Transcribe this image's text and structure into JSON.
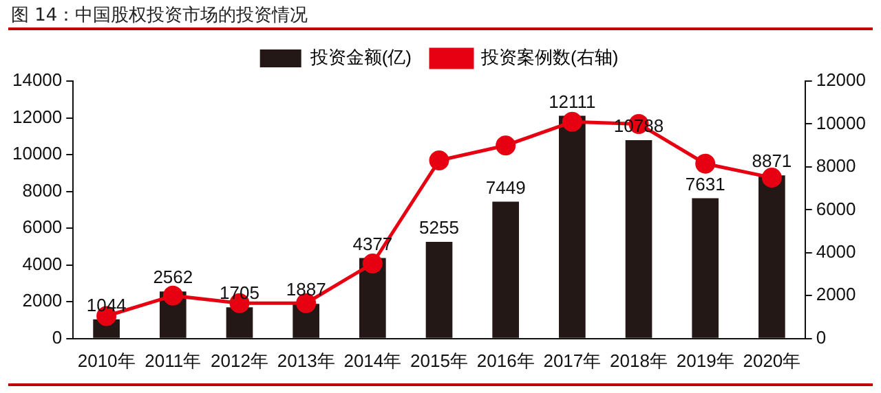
{
  "chart_data": {
    "type": "bar",
    "title": "图 14：中国股权投资市场的投资情况",
    "categories": [
      "2010年",
      "2011年",
      "2012年",
      "2013年",
      "2014年",
      "2015年",
      "2016年",
      "2017年",
      "2018年",
      "2019年",
      "2020年"
    ],
    "series": [
      {
        "name": "投资金额(亿)",
        "color": "#231815",
        "values": [
          1044,
          2562,
          1705,
          1887,
          4377,
          5255,
          7449,
          12111,
          10788,
          7631,
          8871
        ],
        "value_labels": [
          "1044",
          "2562",
          "1705",
          "1887",
          "4377",
          "5255",
          "7449",
          "12111",
          "10788",
          "7631",
          "8871"
        ]
      },
      {
        "name": "投资案例数(右轴)",
        "type": "line",
        "axis": "y2",
        "color": "#e60012",
        "marker": "circle",
        "values": [
          1050,
          2000,
          1650,
          1650,
          3500,
          8300,
          9000,
          10100,
          10000,
          8150,
          7500
        ]
      }
    ],
    "ylim": [
      0,
      14000
    ],
    "yticks": [
      0,
      2000,
      4000,
      6000,
      8000,
      10000,
      12000,
      14000
    ],
    "y2lim": [
      0,
      12000
    ],
    "y2ticks": [
      0,
      2000,
      4000,
      6000,
      8000,
      10000,
      12000
    ],
    "legend": "top",
    "grid": false
  }
}
